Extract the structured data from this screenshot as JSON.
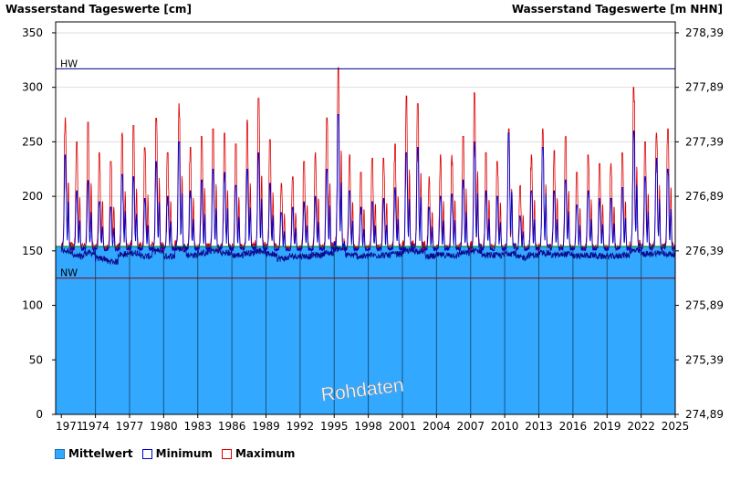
{
  "chart_data": {
    "type": "line",
    "title": "",
    "left_axis_title": "Wasserstand Tageswerte [cm]",
    "right_axis_title": "Wasserstand Tageswerte [m NHN]",
    "ylim": [
      0,
      360
    ],
    "y_ticks": [
      0,
      50,
      100,
      150,
      200,
      250,
      300,
      350
    ],
    "right_ticks": [
      "274,89",
      "275,39",
      "275,89",
      "276,39",
      "276,89",
      "277,39",
      "277,89",
      "278,39"
    ],
    "xlim": [
      1970.5,
      2025
    ],
    "x_ticks": [
      1971,
      1974,
      1977,
      1980,
      1983,
      1986,
      1989,
      1992,
      1995,
      1998,
      2001,
      2004,
      2007,
      2010,
      2013,
      2016,
      2019,
      2022,
      2025
    ],
    "x_tick_labels": [
      "1971",
      "1974",
      "1977",
      "1980",
      "1983",
      "1986",
      "1989",
      "1992",
      "1995",
      "1998",
      "2001",
      "2004",
      "2007",
      "2010",
      "2013",
      "2016",
      "2019",
      "2022",
      "2025"
    ],
    "reference_lines": [
      {
        "name": "HW",
        "value": 317,
        "color": "#00008b"
      },
      {
        "name": "NW",
        "value": 125,
        "color": "#8b0000"
      },
      {
        "name": "",
        "value": 154,
        "color": "#008000"
      }
    ],
    "area_level": 154,
    "baseline": 150,
    "series": [
      {
        "name": "Mittelwert",
        "color": "#33a8ff"
      },
      {
        "name": "Minimum",
        "color": "#0000cc"
      },
      {
        "name": "Maximum",
        "color": "#dd0000"
      }
    ],
    "annual_peaks": {
      "years": [
        1971,
        1972,
        1973,
        1974,
        1975,
        1976,
        1977,
        1978,
        1979,
        1980,
        1981,
        1982,
        1983,
        1984,
        1985,
        1986,
        1987,
        1988,
        1989,
        1990,
        1991,
        1992,
        1993,
        1994,
        1995,
        1996,
        1997,
        1998,
        1999,
        2000,
        2001,
        2002,
        2003,
        2004,
        2005,
        2006,
        2007,
        2008,
        2009,
        2010,
        2011,
        2012,
        2013,
        2014,
        2015,
        2016,
        2017,
        2018,
        2019,
        2020,
        2021,
        2022,
        2023,
        2024
      ],
      "max": [
        272,
        250,
        268,
        240,
        232,
        258,
        265,
        245,
        272,
        240,
        285,
        245,
        255,
        262,
        258,
        248,
        270,
        290,
        252,
        212,
        218,
        232,
        240,
        272,
        318,
        238,
        222,
        235,
        235,
        248,
        292,
        285,
        218,
        238,
        238,
        255,
        295,
        240,
        232,
        262,
        210,
        238,
        262,
        242,
        255,
        222,
        238,
        230,
        230,
        240,
        300,
        250,
        258,
        262
      ],
      "mean": [
        238,
        205,
        215,
        195,
        190,
        220,
        218,
        198,
        232,
        200,
        250,
        205,
        215,
        225,
        222,
        210,
        225,
        240,
        212,
        185,
        190,
        195,
        200,
        225,
        275,
        205,
        190,
        195,
        198,
        208,
        240,
        245,
        190,
        200,
        202,
        215,
        250,
        205,
        200,
        258,
        182,
        205,
        245,
        205,
        215,
        192,
        205,
        198,
        198,
        208,
        260,
        218,
        235,
        225
      ],
      "min": [
        150,
        145,
        148,
        143,
        140,
        147,
        148,
        145,
        150,
        145,
        152,
        146,
        148,
        150,
        148,
        146,
        148,
        150,
        147,
        143,
        145,
        145,
        146,
        148,
        152,
        146,
        145,
        146,
        146,
        147,
        150,
        150,
        145,
        146,
        146,
        148,
        150,
        146,
        146,
        148,
        144,
        146,
        148,
        146,
        147,
        145,
        146,
        145,
        145,
        146,
        150,
        147,
        148,
        147
      ]
    },
    "watermark": "Rohdaten",
    "grid": true,
    "legend_position": "bottom-left"
  }
}
